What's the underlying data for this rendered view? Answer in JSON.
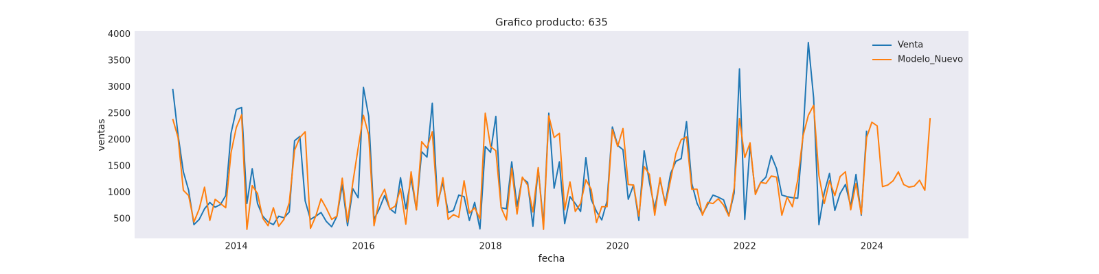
{
  "chart_data": {
    "type": "line",
    "title": "Grafico producto: 635",
    "x_label": "fecha",
    "y_label": "ventas",
    "x": [
      "2013-01",
      "2013-02",
      "2013-03",
      "2013-04",
      "2013-05",
      "2013-06",
      "2013-07",
      "2013-08",
      "2013-09",
      "2013-10",
      "2013-11",
      "2013-12",
      "2014-01",
      "2014-02",
      "2014-03",
      "2014-04",
      "2014-05",
      "2014-06",
      "2014-07",
      "2014-08",
      "2014-09",
      "2014-10",
      "2014-11",
      "2014-12",
      "2015-01",
      "2015-02",
      "2015-03",
      "2015-04",
      "2015-05",
      "2015-06",
      "2015-07",
      "2015-08",
      "2015-09",
      "2015-10",
      "2015-11",
      "2015-12",
      "2016-01",
      "2016-02",
      "2016-03",
      "2016-04",
      "2016-05",
      "2016-06",
      "2016-07",
      "2016-08",
      "2016-09",
      "2016-10",
      "2016-11",
      "2016-12",
      "2017-01",
      "2017-02",
      "2017-03",
      "2017-04",
      "2017-05",
      "2017-06",
      "2017-07",
      "2017-08",
      "2017-09",
      "2017-10",
      "2017-11",
      "2017-12",
      "2018-01",
      "2018-02",
      "2018-03",
      "2018-04",
      "2018-05",
      "2018-06",
      "2018-07",
      "2018-08",
      "2018-09",
      "2018-10",
      "2018-11",
      "2018-12",
      "2019-01",
      "2019-02",
      "2019-03",
      "2019-04",
      "2019-05",
      "2019-06",
      "2019-07",
      "2019-08",
      "2019-09",
      "2019-10",
      "2019-11",
      "2019-12",
      "2020-01",
      "2020-02",
      "2020-03",
      "2020-04",
      "2020-05",
      "2020-06",
      "2020-07",
      "2020-08",
      "2020-09",
      "2020-10",
      "2020-11",
      "2020-12",
      "2021-01",
      "2021-02",
      "2021-03",
      "2021-04",
      "2021-05",
      "2021-06",
      "2021-07",
      "2021-08",
      "2021-09",
      "2021-10",
      "2021-11",
      "2021-12",
      "2022-01",
      "2022-02",
      "2022-03",
      "2022-04",
      "2022-05",
      "2022-06",
      "2022-07",
      "2022-08",
      "2022-09",
      "2022-10",
      "2022-11",
      "2022-12",
      "2023-01",
      "2023-02",
      "2023-03",
      "2023-04",
      "2023-05",
      "2023-06",
      "2023-07",
      "2023-08",
      "2023-09",
      "2023-10",
      "2023-11",
      "2023-12",
      "2024-01",
      "2024-02",
      "2024-03",
      "2024-04",
      "2024-05",
      "2024-06",
      "2024-07",
      "2024-08",
      "2024-09",
      "2024-10",
      "2024-11",
      "2024-12"
    ],
    "series": [
      {
        "name": "Venta",
        "color": "#1f77b4",
        "values": [
          2970,
          2100,
          1400,
          1050,
          400,
          500,
          700,
          820,
          730,
          780,
          950,
          2130,
          2580,
          2620,
          800,
          1460,
          800,
          560,
          450,
          400,
          560,
          530,
          640,
          1990,
          2070,
          850,
          500,
          560,
          630,
          460,
          360,
          560,
          1150,
          380,
          1080,
          910,
          3000,
          2450,
          500,
          700,
          950,
          700,
          620,
          1290,
          700,
          1280,
          680,
          1780,
          1680,
          2700,
          800,
          1200,
          630,
          670,
          960,
          930,
          480,
          820,
          320,
          1880,
          1770,
          2450,
          720,
          700,
          1590,
          750,
          1280,
          1200,
          370,
          1470,
          400,
          2510,
          1090,
          1590,
          420,
          930,
          800,
          650,
          1670,
          880,
          650,
          490,
          850,
          2250,
          1900,
          1820,
          880,
          1150,
          480,
          1800,
          1200,
          700,
          1250,
          800,
          1370,
          1600,
          1650,
          2350,
          1180,
          800,
          600,
          780,
          960,
          920,
          870,
          570,
          1000,
          3350,
          500,
          1900,
          990,
          1200,
          1300,
          1710,
          1460,
          960,
          930,
          910,
          900,
          2100,
          3850,
          2800,
          400,
          1000,
          1370,
          670,
          990,
          1160,
          750,
          1350,
          580,
          2180,
          null,
          null,
          null,
          null,
          null,
          null,
          null,
          null,
          null,
          null,
          null,
          null
        ]
      },
      {
        "name": "Modelo_Nuevo",
        "color": "#ff7f0e",
        "values": [
          2400,
          2050,
          1050,
          950,
          450,
          700,
          1110,
          480,
          880,
          800,
          720,
          1760,
          2240,
          2480,
          310,
          1140,
          990,
          520,
          380,
          720,
          370,
          500,
          820,
          1810,
          2050,
          2160,
          330,
          560,
          890,
          710,
          500,
          560,
          1280,
          450,
          1200,
          1850,
          2470,
          2100,
          380,
          880,
          1070,
          690,
          750,
          1080,
          410,
          1400,
          680,
          1970,
          1850,
          2160,
          750,
          1290,
          500,
          590,
          540,
          1230,
          620,
          720,
          510,
          2510,
          1880,
          1800,
          720,
          490,
          1470,
          600,
          1300,
          1150,
          640,
          1480,
          310,
          2460,
          2050,
          2130,
          680,
          1210,
          650,
          800,
          1250,
          1070,
          440,
          740,
          740,
          2200,
          1880,
          2220,
          1160,
          1150,
          560,
          1500,
          1350,
          580,
          1290,
          760,
          1250,
          1750,
          2010,
          2060,
          1070,
          1070,
          580,
          820,
          800,
          890,
          770,
          560,
          1090,
          2410,
          1670,
          1950,
          970,
          1200,
          1180,
          1320,
          1300,
          580,
          920,
          740,
          1250,
          2080,
          2470,
          2660,
          1330,
          800,
          1230,
          950,
          1310,
          1400,
          680,
          1180,
          600,
          2050,
          2340,
          2270,
          1120,
          1150,
          1230,
          1400,
          1160,
          1110,
          1130,
          1240,
          1050,
          2420
        ]
      }
    ],
    "xlim": [
      2012.4,
      2025.52
    ],
    "xticks": [
      2014,
      2016,
      2018,
      2020,
      2022,
      2024
    ],
    "ylim": [
      140,
      4070
    ],
    "yticks": [
      500,
      1000,
      1500,
      2000,
      2500,
      3000,
      3500,
      4000
    ],
    "grid": false,
    "legend": "upper right"
  }
}
